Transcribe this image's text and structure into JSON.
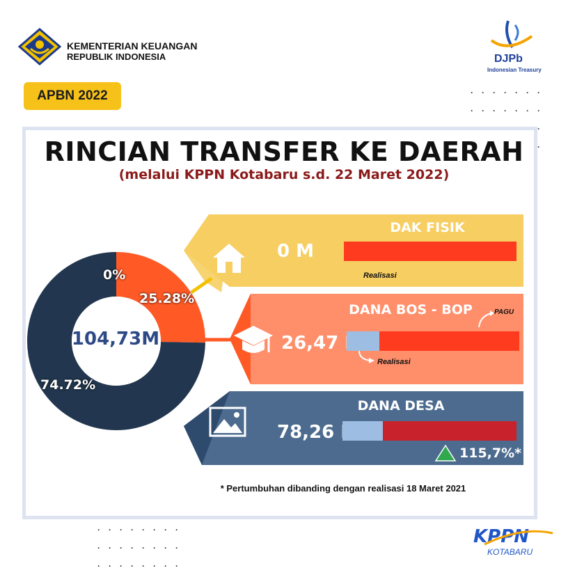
{
  "header": {
    "ministry_line1": "KEMENTERIAN KEUANGAN",
    "ministry_line2": "REPUBLIK INDONESIA",
    "djpb_label": "DJPb",
    "djpb_tag": "Indonesian Treasury",
    "badge": "APBN 2022"
  },
  "infographic": {
    "title": "RINCIAN TRANSFER KE DAERAH",
    "subtitle": "(melalui KPPN Kotabaru s.d. 22 Maret 2022)",
    "center_total": "104,73M",
    "footnote": "* Pertumbuhan dibanding dengan realisasi 18 Maret 2021"
  },
  "categories": [
    {
      "name": "DAK FISIK",
      "amount": "0 M",
      "realisasi_label": "Realisasi",
      "color": "#f6ce62",
      "icon": "house-icon"
    },
    {
      "name": "DANA BOS - BOP",
      "amount": "26,47 M",
      "pagu_label": "PAGU",
      "realisasi_label": "Realisasi",
      "color": "#ff8f6b",
      "icon": "graduation-cap-icon"
    },
    {
      "name": "DANA DESA",
      "amount": "78,26 M",
      "growth": "115,7%*",
      "color": "#4c6b8f",
      "icon": "image-icon"
    }
  ],
  "chart_data": {
    "type": "pie",
    "categories": [
      "DAK FISIK",
      "DANA BOS - BOP",
      "DANA DESA"
    ],
    "values": [
      0,
      25.28,
      74.72
    ],
    "labels": [
      "0%",
      "25.28%",
      "74.72%"
    ],
    "colors": [
      "#f6ce62",
      "#ff5a26",
      "#22374f"
    ],
    "center_label": "104,73M",
    "bars": [
      {
        "name": "DAK FISIK",
        "realisasi_fraction": 0.0
      },
      {
        "name": "DANA BOS - BOP",
        "realisasi_fraction": 0.19
      },
      {
        "name": "DANA DESA",
        "realisasi_fraction": 0.23
      }
    ]
  },
  "footer": {
    "brand": "KPPN",
    "brand_sub": "KOTABARU"
  }
}
